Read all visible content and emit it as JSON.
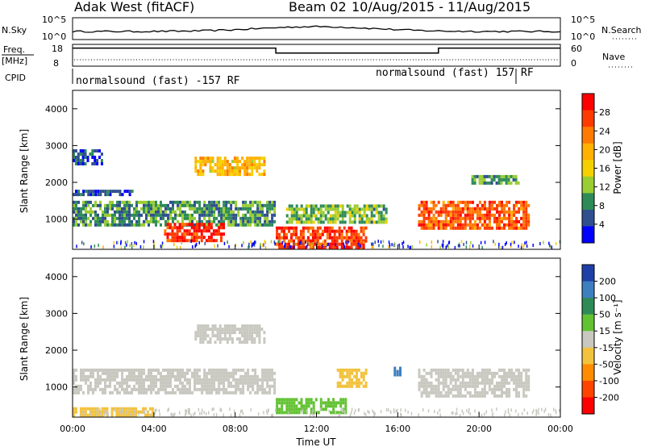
{
  "header": {
    "station": "Adak West (fitACF)",
    "beam": "Beam 02",
    "date_range": "10/Aug/2015 - 11/Aug/2015"
  },
  "top_panels": {
    "nsky": {
      "label": "N.Sky",
      "right_label": "N.Search",
      "left_ticks": [
        "10^5",
        "10^0"
      ],
      "right_ticks": [
        "10^5",
        "10^0"
      ]
    },
    "freq": {
      "label_line1": "Freq.",
      "label_line2": "[MHz]",
      "right_label": "Nave",
      "left_ticks": [
        "18",
        "8"
      ],
      "right_ticks": [
        "60",
        "0"
      ],
      "freq_steps": [
        {
          "start": 0,
          "end": 10,
          "level": 0.83
        },
        {
          "start": 10,
          "end": 18,
          "level": 0.6
        },
        {
          "start": 18,
          "end": 24,
          "level": 0.83
        }
      ]
    },
    "cpid": {
      "label": "CPID",
      "segments": [
        {
          "text": "normalsound (fast) -157 RF",
          "start": 0
        },
        {
          "text": "normalsound (fast) 157 RF",
          "start": 14.7
        }
      ]
    }
  },
  "power_colorbar": {
    "title": "Power [dB]",
    "ticks": [
      "28",
      "24",
      "20",
      "16",
      "12",
      "8",
      "4"
    ],
    "colors": [
      "#ff0000",
      "#ff3a00",
      "#ff7a00",
      "#ffb000",
      "#f5d000",
      "#9acd32",
      "#2e8b57",
      "#2f4f8f",
      "#0000ff"
    ]
  },
  "velocity_colorbar": {
    "title": "Velocity [m s⁻¹]",
    "ticks": [
      "200",
      "100",
      "50",
      "15",
      "-15",
      "-50",
      "-100",
      "-200"
    ],
    "colors": [
      "#1f3fa8",
      "#3e7fbf",
      "#2e8b57",
      "#62c232",
      "#c8c8c0",
      "#f3c23c",
      "#ff8c00",
      "#ff4400",
      "#ff0000"
    ]
  },
  "chart_data": {
    "type": "heatmap",
    "xlabel": "Time UT",
    "ylabel": "Slant Range [km]",
    "x_ticks": [
      "00:00",
      "04:00",
      "08:00",
      "12:00",
      "16:00",
      "20:00",
      "00:00"
    ],
    "y_ticks": [
      "1000",
      "2000",
      "3000",
      "4000"
    ],
    "xlim": [
      0,
      24
    ],
    "ylim": [
      180,
      4500
    ],
    "power_regions": [
      {
        "t0": 0.0,
        "t1": 10.0,
        "r0": 800,
        "r1": 1500,
        "value": 10
      },
      {
        "t0": 4.5,
        "t1": 7.5,
        "r0": 400,
        "r1": 900,
        "value": 27
      },
      {
        "t0": 6.0,
        "t1": 9.5,
        "r0": 2200,
        "r1": 2700,
        "value": 18
      },
      {
        "t0": 10.0,
        "t1": 14.5,
        "r0": 200,
        "r1": 800,
        "value": 26
      },
      {
        "t0": 10.5,
        "t1": 15.5,
        "r0": 900,
        "r1": 1400,
        "value": 12
      },
      {
        "t0": 17.0,
        "t1": 22.5,
        "r0": 700,
        "r1": 1500,
        "value": 24
      },
      {
        "t0": 19.5,
        "t1": 22.0,
        "r0": 1900,
        "r1": 2200,
        "value": 10
      },
      {
        "t0": 0.0,
        "t1": 3.0,
        "r0": 1600,
        "r1": 1800,
        "value": 6
      },
      {
        "t0": 0.0,
        "t1": 1.5,
        "r0": 2500,
        "r1": 2900,
        "value": 6
      }
    ],
    "velocity_regions": [
      {
        "t0": 0.0,
        "t1": 10.0,
        "r0": 800,
        "r1": 1500,
        "value": 0
      },
      {
        "t0": 6.0,
        "t1": 9.5,
        "r0": 2200,
        "r1": 2700,
        "value": 0
      },
      {
        "t0": 10.0,
        "t1": 13.5,
        "r0": 300,
        "r1": 700,
        "value": 30
      },
      {
        "t0": 13.0,
        "t1": 14.5,
        "r0": 1000,
        "r1": 1500,
        "value": -60
      },
      {
        "t0": 15.8,
        "t1": 16.2,
        "r0": 1300,
        "r1": 1550,
        "value": 150
      },
      {
        "t0": 17.0,
        "t1": 22.5,
        "r0": 700,
        "r1": 1500,
        "value": 0
      },
      {
        "t0": 0.0,
        "t1": 4.0,
        "r0": 200,
        "r1": 450,
        "value": -30
      }
    ]
  }
}
